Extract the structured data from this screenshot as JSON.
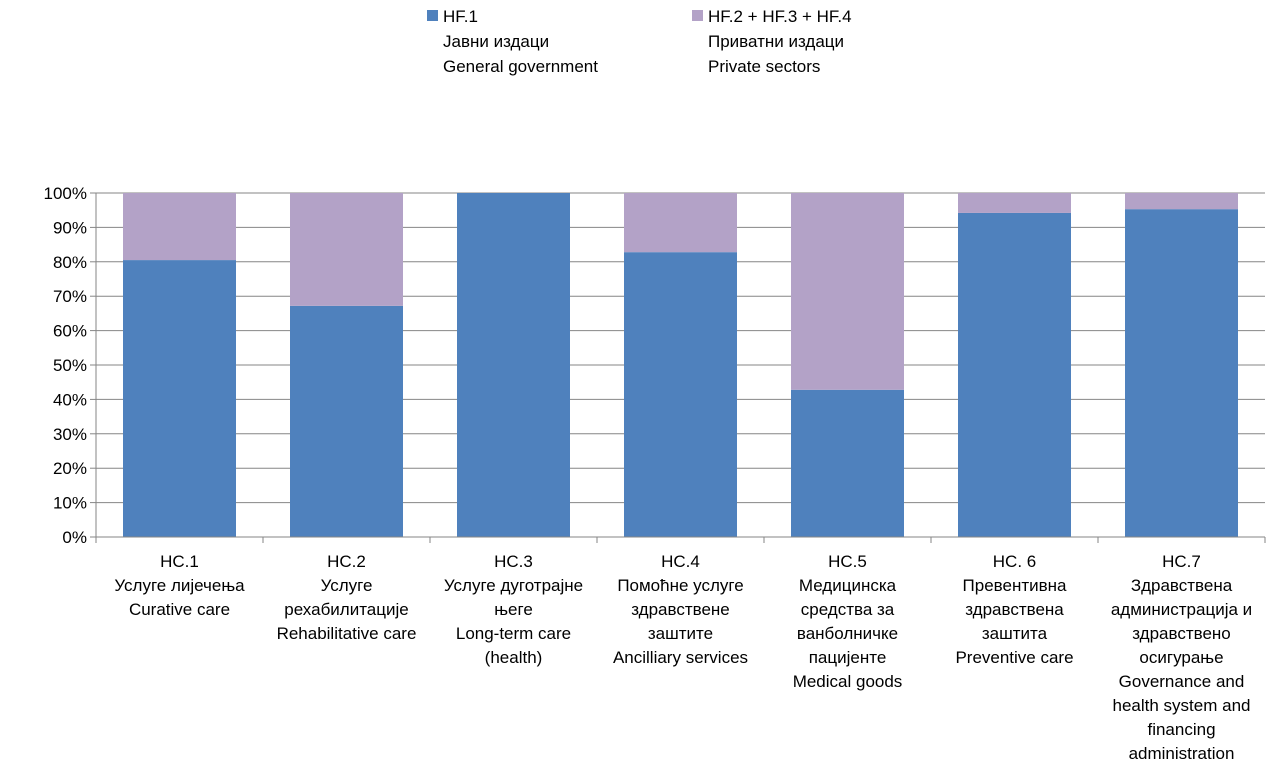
{
  "chart_data": {
    "type": "bar",
    "stacked": "percent",
    "categories": [
      [
        "HC.1",
        "Услуге лијечења",
        "Curative care"
      ],
      [
        "HC.2",
        "Услуге",
        "рехабилитације",
        "Rehabilitative care"
      ],
      [
        "HC.3",
        "Услуге дуготрајне",
        "његе",
        "Long-term care",
        "(health)"
      ],
      [
        "HC.4",
        "Помоћне услуге",
        "здравствене",
        "заштите",
        "Ancilliary services"
      ],
      [
        "HC.5",
        "Медицинска",
        "средства за",
        "ванболничке",
        "пацијенте",
        "Medical goods"
      ],
      [
        "HC. 6",
        "Превентивна",
        "здравствена",
        "заштита",
        "Preventive care"
      ],
      [
        "HC.7",
        "Здравствена",
        "администрација и",
        "здравствено",
        "осигурање",
        "Governance and",
        "health system and",
        "financing",
        "administration"
      ]
    ],
    "series": [
      {
        "name": [
          "HF.1",
          "Јавни издаци",
          "General government"
        ],
        "color": "#4F81BD",
        "values": [
          80.5,
          67.2,
          100,
          82.8,
          42.8,
          94.2,
          95.3
        ]
      },
      {
        "name": [
          "HF.2 + HF.3 + HF.4",
          "Приватни издаци",
          "Private sectors"
        ],
        "color": "#B3A2C7",
        "values": [
          19.5,
          32.8,
          0,
          17.2,
          57.2,
          5.8,
          4.7
        ]
      }
    ],
    "y_ticks": [
      "0%",
      "10%",
      "20%",
      "30%",
      "40%",
      "50%",
      "60%",
      "70%",
      "80%",
      "90%",
      "100%"
    ],
    "ylim": [
      0,
      100
    ],
    "grid": true,
    "legend": "top"
  }
}
